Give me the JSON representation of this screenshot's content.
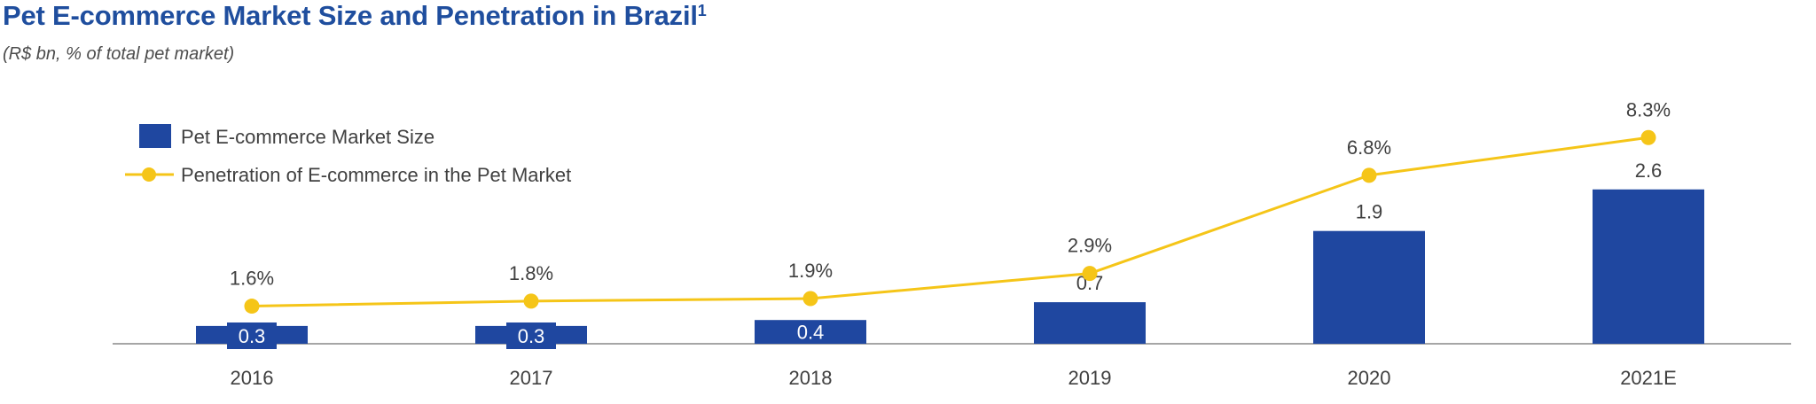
{
  "header": {
    "title": "Pet E-commerce Market Size and Penetration in Brazil",
    "title_sup": "1",
    "subtitle": "(R$ bn, % of total pet market)"
  },
  "colors": {
    "bar": "#1f47a0",
    "line": "#f5c518",
    "axis": "#a6a6a6"
  },
  "chart_data": {
    "type": "bar",
    "categories": [
      "2016",
      "2017",
      "2018",
      "2019",
      "2020",
      "2021E"
    ],
    "series": [
      {
        "name": "Pet E-commerce Market Size",
        "type": "bar",
        "values": [
          0.3,
          0.3,
          0.4,
          0.7,
          1.9,
          2.6
        ],
        "labels": [
          "0.3",
          "0.3",
          "0.4",
          "0.7",
          "1.9",
          "2.6"
        ]
      },
      {
        "name": "Penetration of E-commerce in the Pet Market",
        "type": "line",
        "values": [
          1.6,
          1.8,
          1.9,
          2.9,
          6.8,
          8.3
        ],
        "labels": [
          "1.6%",
          "1.8%",
          "1.9%",
          "2.9%",
          "6.8%",
          "8.3%"
        ]
      }
    ],
    "legend_position": "top-left",
    "grid": false
  }
}
